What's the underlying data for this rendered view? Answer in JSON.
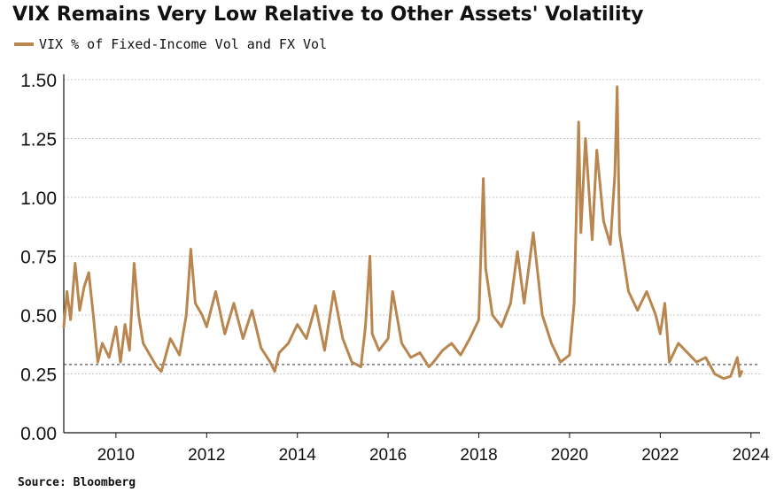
{
  "chart_data": {
    "type": "line",
    "title": "VIX Remains Very Low Relative to Other Assets' Volatility",
    "xlabel": "",
    "ylabel": "",
    "source": "Source: Bloomberg",
    "series": [
      {
        "name": "VIX % of Fixed-Income Vol and FX Vol",
        "color": "#B8864E",
        "x": [
          2008.85,
          2008.92,
          2009.0,
          2009.1,
          2009.2,
          2009.3,
          2009.4,
          2009.5,
          2009.6,
          2009.7,
          2009.85,
          2010.0,
          2010.1,
          2010.2,
          2010.3,
          2010.4,
          2010.5,
          2010.6,
          2010.75,
          2010.9,
          2011.0,
          2011.2,
          2011.4,
          2011.55,
          2011.65,
          2011.75,
          2011.9,
          2012.0,
          2012.2,
          2012.4,
          2012.6,
          2012.8,
          2013.0,
          2013.2,
          2013.4,
          2013.5,
          2013.6,
          2013.8,
          2014.0,
          2014.2,
          2014.4,
          2014.6,
          2014.8,
          2015.0,
          2015.2,
          2015.4,
          2015.5,
          2015.6,
          2015.65,
          2015.8,
          2016.0,
          2016.1,
          2016.3,
          2016.5,
          2016.7,
          2016.9,
          2017.0,
          2017.2,
          2017.4,
          2017.6,
          2017.8,
          2018.0,
          2018.1,
          2018.15,
          2018.3,
          2018.5,
          2018.7,
          2018.85,
          2019.0,
          2019.2,
          2019.4,
          2019.6,
          2019.8,
          2020.0,
          2020.1,
          2020.2,
          2020.25,
          2020.35,
          2020.5,
          2020.6,
          2020.75,
          2020.9,
          2021.0,
          2021.05,
          2021.1,
          2021.3,
          2021.5,
          2021.7,
          2021.9,
          2022.0,
          2022.1,
          2022.2,
          2022.4,
          2022.6,
          2022.8,
          2023.0,
          2023.2,
          2023.4,
          2023.55,
          2023.7,
          2023.75,
          2023.8
        ],
        "values": [
          0.45,
          0.6,
          0.48,
          0.72,
          0.52,
          0.62,
          0.68,
          0.5,
          0.3,
          0.38,
          0.32,
          0.45,
          0.3,
          0.46,
          0.35,
          0.72,
          0.5,
          0.38,
          0.33,
          0.28,
          0.26,
          0.4,
          0.33,
          0.5,
          0.78,
          0.55,
          0.5,
          0.45,
          0.6,
          0.42,
          0.55,
          0.4,
          0.52,
          0.36,
          0.3,
          0.26,
          0.34,
          0.38,
          0.46,
          0.4,
          0.54,
          0.35,
          0.6,
          0.4,
          0.3,
          0.28,
          0.45,
          0.75,
          0.42,
          0.35,
          0.4,
          0.6,
          0.38,
          0.32,
          0.34,
          0.28,
          0.3,
          0.35,
          0.38,
          0.33,
          0.4,
          0.48,
          1.08,
          0.7,
          0.5,
          0.45,
          0.55,
          0.77,
          0.55,
          0.85,
          0.5,
          0.38,
          0.3,
          0.33,
          0.55,
          1.32,
          0.85,
          1.25,
          0.82,
          1.2,
          0.9,
          0.8,
          1.1,
          1.47,
          0.85,
          0.6,
          0.52,
          0.6,
          0.5,
          0.42,
          0.55,
          0.3,
          0.38,
          0.34,
          0.3,
          0.32,
          0.25,
          0.23,
          0.24,
          0.32,
          0.24,
          0.26
        ]
      }
    ],
    "reference_line": 0.29,
    "xlim": [
      2008.85,
      2024.2
    ],
    "ylim": [
      0,
      1.5
    ],
    "yticks": [
      "0.00",
      "0.25",
      "0.50",
      "0.75",
      "1.00",
      "1.25",
      "1.50"
    ],
    "xticks": [
      "2010",
      "2012",
      "2014",
      "2016",
      "2018",
      "2020",
      "2022",
      "2024"
    ],
    "grid": true,
    "legend_position": "top-left"
  }
}
